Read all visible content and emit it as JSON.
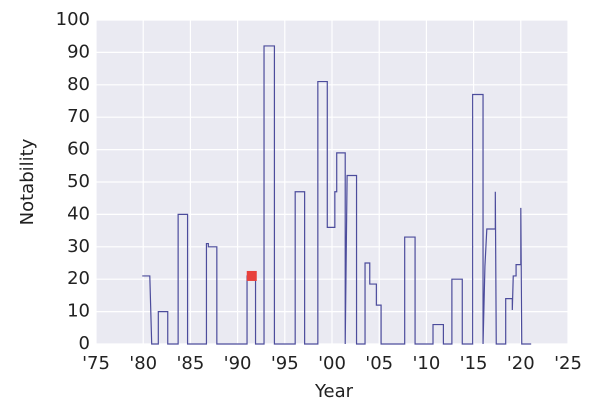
{
  "chart_data": {
    "type": "line",
    "xlabel": "Year",
    "ylabel": "Notability",
    "xlim": [
      1975,
      2025
    ],
    "ylim": [
      0,
      100
    ],
    "xticks": [
      {
        "value": 1975,
        "label": "'75"
      },
      {
        "value": 1980,
        "label": "'80"
      },
      {
        "value": 1985,
        "label": "'85"
      },
      {
        "value": 1990,
        "label": "'90"
      },
      {
        "value": 1995,
        "label": "'95"
      },
      {
        "value": 2000,
        "label": "'00"
      },
      {
        "value": 2005,
        "label": "'05"
      },
      {
        "value": 2010,
        "label": "'10"
      },
      {
        "value": 2015,
        "label": "'15"
      },
      {
        "value": 2020,
        "label": "'20"
      },
      {
        "value": 2025,
        "label": "'25"
      }
    ],
    "yticks": [
      0,
      10,
      20,
      30,
      40,
      50,
      60,
      70,
      80,
      90,
      100
    ],
    "grid": true,
    "series": [
      {
        "color": "#4c4c9c",
        "x": [
          1979.9,
          1980.7,
          1980.9,
          1981.6,
          1981.6,
          1982.6,
          1982.6,
          1983.7,
          1983.7,
          1984.7,
          1984.7,
          1986.7,
          1986.7,
          1986.9,
          1986.9,
          1987.8,
          1987.8,
          1991.0,
          1991.0,
          1991.9,
          1991.9,
          1992.8,
          1992.8,
          1993.9,
          1993.9,
          1996.1,
          1996.1,
          1997.1,
          1997.1,
          1998.5,
          1998.5,
          1999.5,
          1999.5,
          2000.3,
          2000.3,
          2000.5,
          2000.5,
          2001.4,
          2001.4,
          2001.6,
          2002.6,
          2002.6,
          2003.5,
          2003.5,
          2004.0,
          2004.0,
          2004.7,
          2004.7,
          2005.2,
          2005.2,
          2007.7,
          2007.7,
          2008.8,
          2008.8,
          2010.7,
          2010.7,
          2011.8,
          2011.8,
          2012.7,
          2012.7,
          2013.8,
          2013.8,
          2014.9,
          2014.9,
          2016.0,
          2016.0,
          2016.2,
          2016.4,
          2017.3,
          2017.3,
          2017.4,
          2018.4,
          2018.4,
          2019.1,
          2019.1,
          2019.2,
          2019.5,
          2019.5,
          2020.0,
          2020.0,
          2020.1,
          2021.1
        ],
        "values": [
          21,
          21,
          0,
          0,
          10,
          10,
          0,
          0,
          40,
          40,
          0,
          0,
          31,
          31,
          30,
          30,
          0,
          0,
          21,
          21,
          0,
          0,
          92,
          92,
          0,
          0,
          47,
          47,
          0,
          0,
          81,
          81,
          36,
          36,
          47,
          47,
          59,
          59,
          0,
          52,
          52,
          0,
          0,
          25,
          25,
          18.5,
          18.5,
          12,
          12,
          0,
          0,
          33,
          33,
          0,
          0,
          6,
          6,
          0,
          0,
          20,
          20,
          0,
          0,
          77,
          77,
          0,
          24,
          35.5,
          35.5,
          47,
          0,
          0,
          14,
          14,
          10.5,
          21,
          21,
          24.5,
          24.5,
          42,
          0,
          0
        ]
      }
    ],
    "marker": {
      "x": 1991.5,
      "y": 21,
      "color": "#e8413d"
    }
  }
}
